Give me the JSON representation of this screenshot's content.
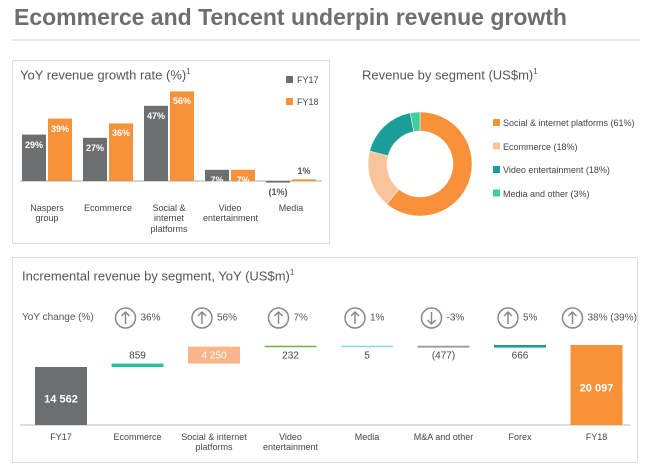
{
  "title": "Ecommerce and Tencent underpin revenue growth",
  "chart_data": [
    {
      "type": "grouped-bar",
      "title": "YoY revenue growth rate (%)",
      "title_note": "1",
      "categories": [
        "Naspers group",
        "Ecommerce",
        "Social & internet platforms",
        "Video entertainment",
        "Media"
      ],
      "series": [
        {
          "name": "FY17",
          "color": "#6d6e70",
          "values": [
            29,
            27,
            47,
            7,
            -1
          ],
          "value_labels": [
            "29%",
            "27%",
            "47%",
            "7%",
            "(1%)"
          ]
        },
        {
          "name": "FY18",
          "color": "#f7923a",
          "values": [
            39,
            36,
            56,
            7,
            1
          ],
          "value_labels": [
            "39%",
            "36%",
            "56%",
            "7%",
            "1%"
          ]
        }
      ]
    },
    {
      "type": "donut",
      "title": "Revenue by segment (US$m)",
      "title_note": "1",
      "categories": [
        "Social & internet platforms (61%)",
        "Ecommerce (18%)",
        "Video entertainment (18%)",
        "Media and other (3%)"
      ],
      "values": [
        61,
        18,
        18,
        3
      ],
      "colors": [
        "#f7923a",
        "#f9c49a",
        "#1b9e9a",
        "#3ecf9d"
      ]
    },
    {
      "type": "waterfall",
      "title": "Incremental revenue by segment, YoY (US$m)",
      "title_note": "1",
      "categories": [
        "FY17",
        "Ecommerce",
        "Social & internet platforms",
        "Video entertainment",
        "Media",
        "M&A and other",
        "Forex",
        "FY18"
      ],
      "values": [
        14562,
        859,
        4250,
        232,
        5,
        -477,
        666,
        20097
      ],
      "value_labels": [
        "14 562",
        "859",
        "4 250",
        "232",
        "5",
        "(477)",
        "666",
        "20 097"
      ],
      "colors": [
        "#6d6e70",
        "#22c29c",
        "#f9b58a",
        "#6ab04c",
        "#8fd3e8",
        "#9b9b9b",
        "#1b9e9a",
        "#f7923a"
      ],
      "yoy_label": "YoY change (%)",
      "yoy_values": [
        null,
        36,
        56,
        7,
        1,
        -3,
        5,
        38
      ],
      "yoy_labels": [
        null,
        "36%",
        "56%",
        "7%",
        "1%",
        "-3%",
        "5%",
        "38% (39%)"
      ]
    }
  ]
}
